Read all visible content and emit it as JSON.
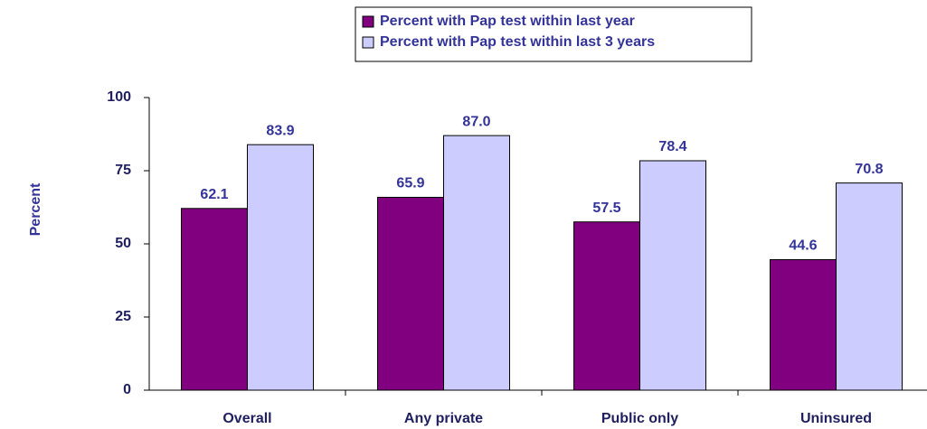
{
  "chart_data": {
    "type": "bar",
    "y_label": "Percent",
    "categories": [
      "Overall",
      "Any private",
      "Public only",
      "Uninsured"
    ],
    "series": [
      {
        "name": "Percent with Pap test within last year",
        "color": "#800080",
        "values": [
          62.1,
          65.9,
          57.5,
          44.6
        ],
        "value_labels": [
          "62.1",
          "65.9",
          "57.5",
          "44.6"
        ]
      },
      {
        "name": "Percent with Pap test within last 3 years",
        "color": "#ccccff",
        "values": [
          83.9,
          87.0,
          78.4,
          70.8
        ],
        "value_labels": [
          "83.9",
          "87.0",
          "78.4",
          "70.8"
        ]
      }
    ],
    "ylim": [
      0,
      100
    ],
    "yticks": [
      0,
      25,
      50,
      75,
      100
    ],
    "grid": false,
    "legend": "top"
  }
}
